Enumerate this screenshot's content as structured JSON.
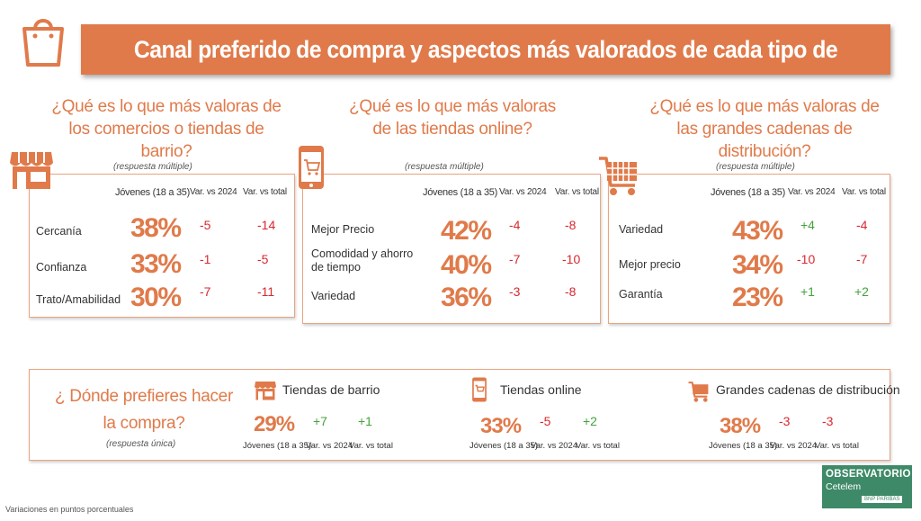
{
  "title": "Canal preferido de compra y aspectos más valorados de cada tipo de canal",
  "colors": {
    "accent": "#e07a4a",
    "negative": "#d9272e",
    "positive": "#45a23c",
    "logo_green": "#3e8a68"
  },
  "icons": [
    "shopping-bag-icon",
    "storefront-icon",
    "smartphone-cart-icon",
    "shopping-cart-icon"
  ],
  "panels": [
    {
      "question": "¿Qué es lo que más valoras de los comercios o tiendas de barrio?",
      "note": "(respuesta múltiple)",
      "headers": [
        "Jóvenes (18 a 35)",
        "Var. vs 2024",
        "Var. vs total"
      ],
      "rows": [
        {
          "label": "Cercanía",
          "pct": "38%",
          "var2024": "-5",
          "vartotal": "-14"
        },
        {
          "label": "Confianza",
          "pct": "33%",
          "var2024": "-1",
          "vartotal": "-5"
        },
        {
          "label": "Trato/Amabilidad",
          "pct": "30%",
          "var2024": "-7",
          "vartotal": "-11"
        }
      ]
    },
    {
      "question": "¿Qué es lo que más valoras de las tiendas online?",
      "note": "(respuesta múltiple)",
      "headers": [
        "Jóvenes (18 a 35)",
        "Var. vs 2024",
        "Var. vs total"
      ],
      "rows": [
        {
          "label": "Mejor Precio",
          "pct": "42%",
          "var2024": "-4",
          "vartotal": "-8"
        },
        {
          "label": "Comodidad  y ahorro de tiempo",
          "pct": "40%",
          "var2024": "-7",
          "vartotal": "-10"
        },
        {
          "label": "Variedad",
          "pct": "36%",
          "var2024": "-3",
          "vartotal": "-8"
        }
      ]
    },
    {
      "question": "¿Qué es lo que más valoras de las grandes cadenas de distribución?",
      "note": "(respuesta múltiple)",
      "headers": [
        "Jóvenes (18 a 35)",
        "Var. vs 2024",
        "Var. vs total"
      ],
      "rows": [
        {
          "label": "Variedad",
          "pct": "43%",
          "var2024": "+4",
          "vartotal": "-4"
        },
        {
          "label": "Mejor precio",
          "pct": "34%",
          "var2024": "-10",
          "vartotal": "-7"
        },
        {
          "label": "Garantía",
          "pct": "23%",
          "var2024": "+1",
          "vartotal": "+2"
        }
      ]
    }
  ],
  "bottom": {
    "question": "¿ Dónde prefieres hacer la compra?",
    "note": "(respuesta única)",
    "channels": [
      {
        "name": "Tiendas de barrio",
        "pct": "29%",
        "var2024": "+7",
        "vartotal": "+1",
        "jov": "Jóvenes (18 a 35)",
        "h2024": "Var. vs 2024",
        "htotal": "Var. vs total"
      },
      {
        "name": "Tiendas online",
        "pct": "33%",
        "var2024": "-5",
        "vartotal": "+2",
        "jov": "Jóvenes (18 a 35)",
        "h2024": "Var. vs 2024",
        "htotal": "Var. vs total"
      },
      {
        "name": "Grandes cadenas de distribución",
        "pct": "38%",
        "var2024": "-3",
        "vartotal": "-3",
        "jov": "Jóvenes (18 a 35)",
        "h2024": "Var. vs 2024",
        "htotal": "Var. vs total"
      }
    ]
  },
  "footnote": "Variaciones en puntos porcentuales",
  "logo": {
    "line1": "OBSERVATORIO",
    "line2": "Cetelem",
    "line3": "BNP PARIBAS"
  }
}
